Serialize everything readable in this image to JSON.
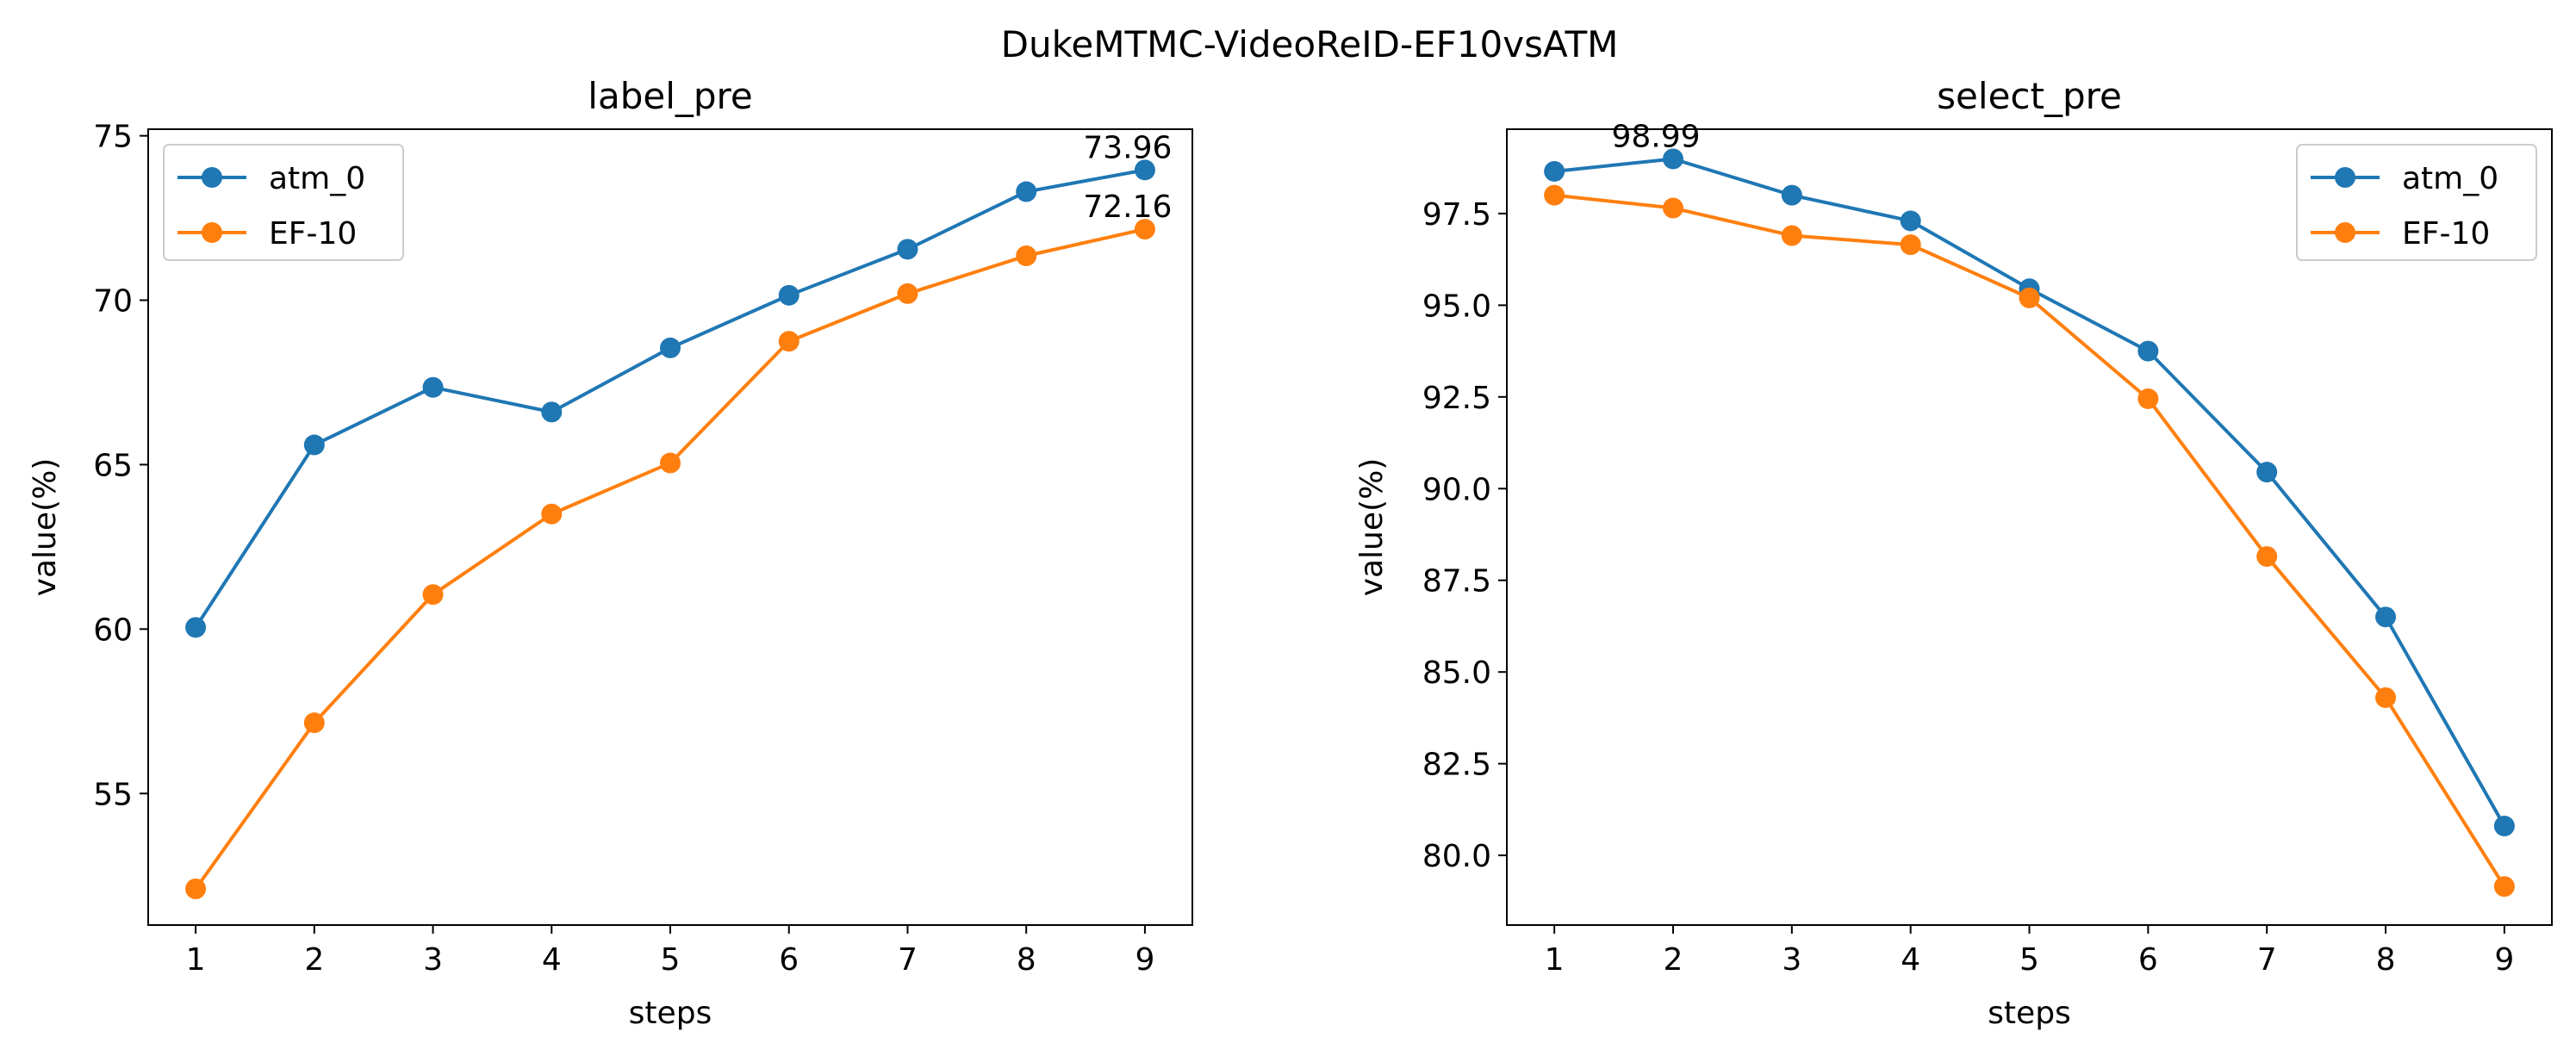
{
  "chart_data": [
    {
      "type": "line",
      "figure_title": "DukeMTMC-VideoReID-EF10vsATM",
      "title": "label_pre",
      "xlabel": "steps",
      "ylabel": "value(%)",
      "x": [
        1,
        2,
        3,
        4,
        5,
        6,
        7,
        8,
        9
      ],
      "xlim": [
        0.6,
        9.4
      ],
      "ylim": [
        51.0,
        75.2
      ],
      "yticks": [
        55,
        60,
        65,
        70,
        75
      ],
      "ytick_labels": [
        "55",
        "60",
        "65",
        "70",
        "75"
      ],
      "xtick_labels": [
        "1",
        "2",
        "3",
        "4",
        "5",
        "6",
        "7",
        "8",
        "9"
      ],
      "legend_position": "upper-left",
      "grid": false,
      "series": [
        {
          "name": "atm_0",
          "color": "#1f77b4",
          "values": [
            60.05,
            65.6,
            67.35,
            66.6,
            68.55,
            70.15,
            71.55,
            73.3,
            73.96
          ]
        },
        {
          "name": "EF-10",
          "color": "#ff7f0e",
          "values": [
            52.1,
            57.15,
            61.05,
            63.5,
            65.05,
            68.75,
            70.2,
            71.35,
            72.16
          ]
        }
      ],
      "annotations": [
        {
          "text": "73.96",
          "x": 9,
          "y": 73.96
        },
        {
          "text": "72.16",
          "x": 9,
          "y": 72.16
        }
      ]
    },
    {
      "type": "line",
      "title": "select_pre",
      "xlabel": "steps",
      "ylabel": "value(%)",
      "x": [
        1,
        2,
        3,
        4,
        5,
        6,
        7,
        8,
        9
      ],
      "xlim": [
        0.6,
        9.4
      ],
      "ylim": [
        78.1,
        99.8
      ],
      "yticks": [
        80.0,
        82.5,
        85.0,
        87.5,
        90.0,
        92.5,
        95.0,
        97.5
      ],
      "ytick_labels": [
        "80.0",
        "82.5",
        "85.0",
        "87.5",
        "90.0",
        "92.5",
        "95.0",
        "97.5"
      ],
      "xtick_labels": [
        "1",
        "2",
        "3",
        "4",
        "5",
        "6",
        "7",
        "8",
        "9"
      ],
      "legend_position": "upper-right",
      "grid": false,
      "series": [
        {
          "name": "atm_0",
          "color": "#1f77b4",
          "values": [
            98.65,
            98.99,
            98.0,
            97.3,
            95.45,
            93.75,
            90.45,
            86.5,
            80.8
          ]
        },
        {
          "name": "EF-10",
          "color": "#ff7f0e",
          "values": [
            98.0,
            97.65,
            96.9,
            96.65,
            95.2,
            92.45,
            88.15,
            84.3,
            79.15
          ]
        }
      ],
      "annotations": [
        {
          "text": "98.99",
          "x": 2,
          "y": 98.99
        }
      ]
    }
  ]
}
